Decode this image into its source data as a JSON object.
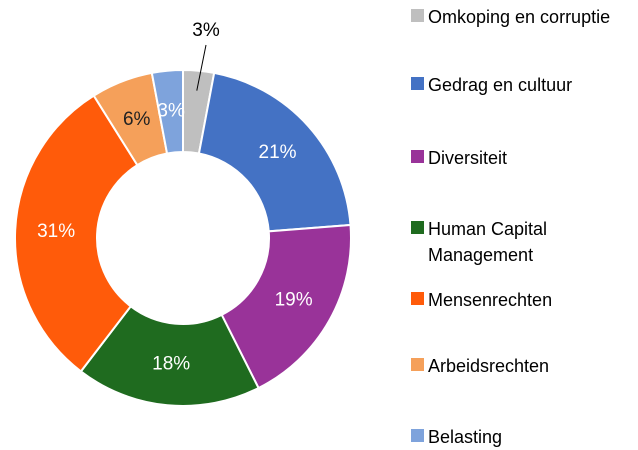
{
  "chart_data": {
    "type": "donut",
    "categories": [
      "Omkoping en corruptie",
      "Gedrag en cultuur",
      "Diversiteit",
      "Human Capital Management",
      "Mensenrechten",
      "Arbeidsrechten",
      "Belasting"
    ],
    "values": [
      3,
      21,
      19,
      18,
      31,
      6,
      3
    ],
    "value_labels": [
      "3%",
      "21%",
      "19%",
      "18%",
      "31%",
      "6%",
      "3%"
    ],
    "colors": [
      "#bfbfbf",
      "#4472c4",
      "#993399",
      "#1f6b1f",
      "#ff5b0a",
      "#f5a05a",
      "#7ea3dc"
    ],
    "legend": "right"
  }
}
